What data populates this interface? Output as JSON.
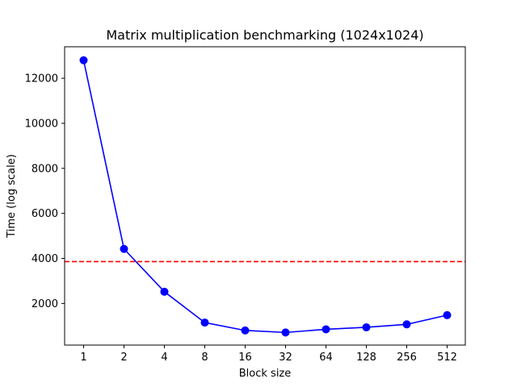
{
  "chart_data": {
    "type": "line",
    "title": "Matrix multiplication benchmarking (1024x1024)",
    "xlabel": "Block size",
    "ylabel": "Time (log scale)",
    "categories": [
      "1",
      "2",
      "4",
      "8",
      "16",
      "32",
      "64",
      "128",
      "256",
      "512"
    ],
    "series": [
      {
        "values": [
          12800,
          4420,
          2520,
          1150,
          800,
          710,
          850,
          940,
          1070,
          1480
        ],
        "color": "#0000ff",
        "marker": "circle",
        "line_style": "solid"
      }
    ],
    "reference_line": {
      "y": 3860,
      "color": "#ff0000",
      "line_style": "dashed"
    },
    "ylim": [
      150,
      13400
    ],
    "yticks": [
      2000,
      4000,
      6000,
      8000,
      10000,
      12000
    ],
    "ytick_labels": [
      "2000",
      "4000",
      "6000",
      "8000",
      "10000",
      "12000"
    ],
    "grid": false,
    "legend": "none"
  }
}
